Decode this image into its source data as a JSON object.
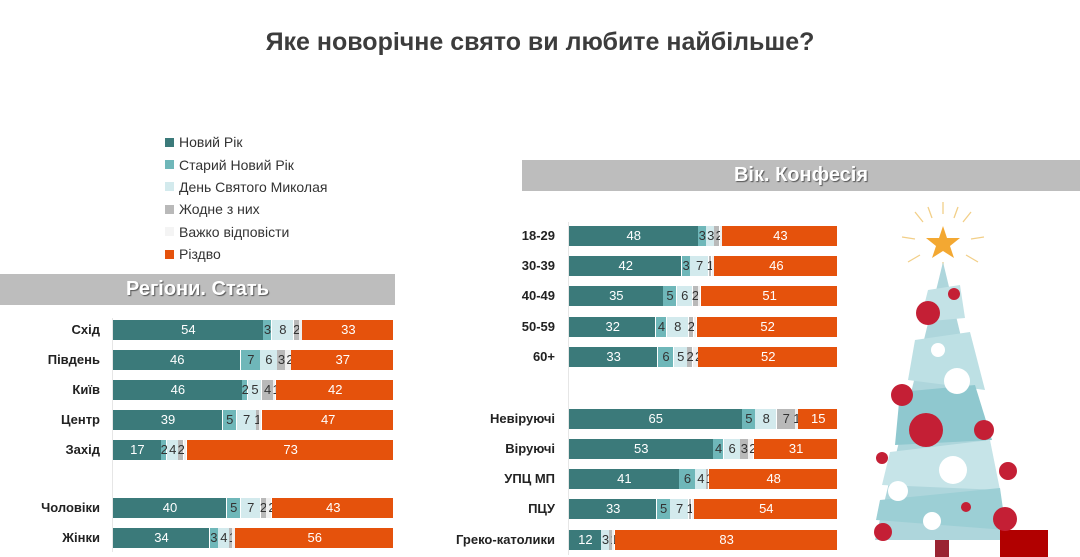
{
  "title": "Яке новорічне свято ви любите найбільше?",
  "colors": [
    "#3b7a7a",
    "#6fb7b9",
    "#d3eaed",
    "#b9b9b9",
    "#efefef",
    "#e5520c"
  ],
  "legend": [
    "Новий Рік",
    "Старий Новий Рік",
    "День Святого Миколая",
    "Жодне з них",
    "Важко відповісти",
    "Різдво"
  ],
  "chart_data": [
    {
      "type": "bar",
      "orientation": "horizontal-stacked",
      "title": "Регіони. Стать",
      "categories": [
        "Схід",
        "Південь",
        "Київ",
        "Центр",
        "Захід",
        "Чоловіки",
        "Жінки"
      ],
      "series": [
        {
          "name": "Новий Рік",
          "values": [
            54,
            46,
            46,
            39,
            17,
            40,
            34
          ]
        },
        {
          "name": "Старий Новий Рік",
          "values": [
            3,
            7,
            2,
            5,
            2,
            5,
            3
          ]
        },
        {
          "name": "День Святого Миколая",
          "values": [
            8,
            6,
            5,
            7,
            4,
            7,
            4
          ]
        },
        {
          "name": "Жодне з них",
          "values": [
            2,
            3,
            4,
            1,
            2,
            2,
            1
          ]
        },
        {
          "name": "Важко відповісти",
          "values": [
            1,
            2,
            1,
            1,
            1,
            2,
            1
          ]
        },
        {
          "name": "Різдво",
          "values": [
            33,
            37,
            42,
            47,
            73,
            43,
            56
          ]
        }
      ],
      "xlim": [
        0,
        100
      ]
    },
    {
      "type": "bar",
      "orientation": "horizontal-stacked",
      "title": "Вік. Конфесія",
      "categories": [
        "18-29",
        "30-39",
        "40-49",
        "50-59",
        "60+",
        "Невіруючі",
        "Віруючі",
        "УПЦ МП",
        "ПЦУ",
        "Греко-католики"
      ],
      "series": [
        {
          "name": "Новий Рік",
          "values": [
            48,
            42,
            35,
            32,
            33,
            65,
            53,
            41,
            33,
            12
          ]
        },
        {
          "name": "Старий Новий Рік",
          "values": [
            3,
            3,
            5,
            4,
            6,
            5,
            4,
            6,
            5,
            0
          ]
        },
        {
          "name": "День Святого Миколая",
          "values": [
            3,
            7,
            6,
            8,
            5,
            8,
            6,
            4,
            7,
            3
          ]
        },
        {
          "name": "Жодне з них",
          "values": [
            2,
            1,
            2,
            2,
            2,
            7,
            3,
            1,
            1,
            1
          ]
        },
        {
          "name": "Важко відповісти",
          "values": [
            1,
            1,
            1,
            1,
            2,
            1,
            2,
            0,
            1,
            1
          ]
        },
        {
          "name": "Різдво",
          "values": [
            43,
            46,
            51,
            52,
            52,
            15,
            31,
            48,
            54,
            83
          ]
        }
      ],
      "xlim": [
        0,
        100
      ]
    }
  ]
}
